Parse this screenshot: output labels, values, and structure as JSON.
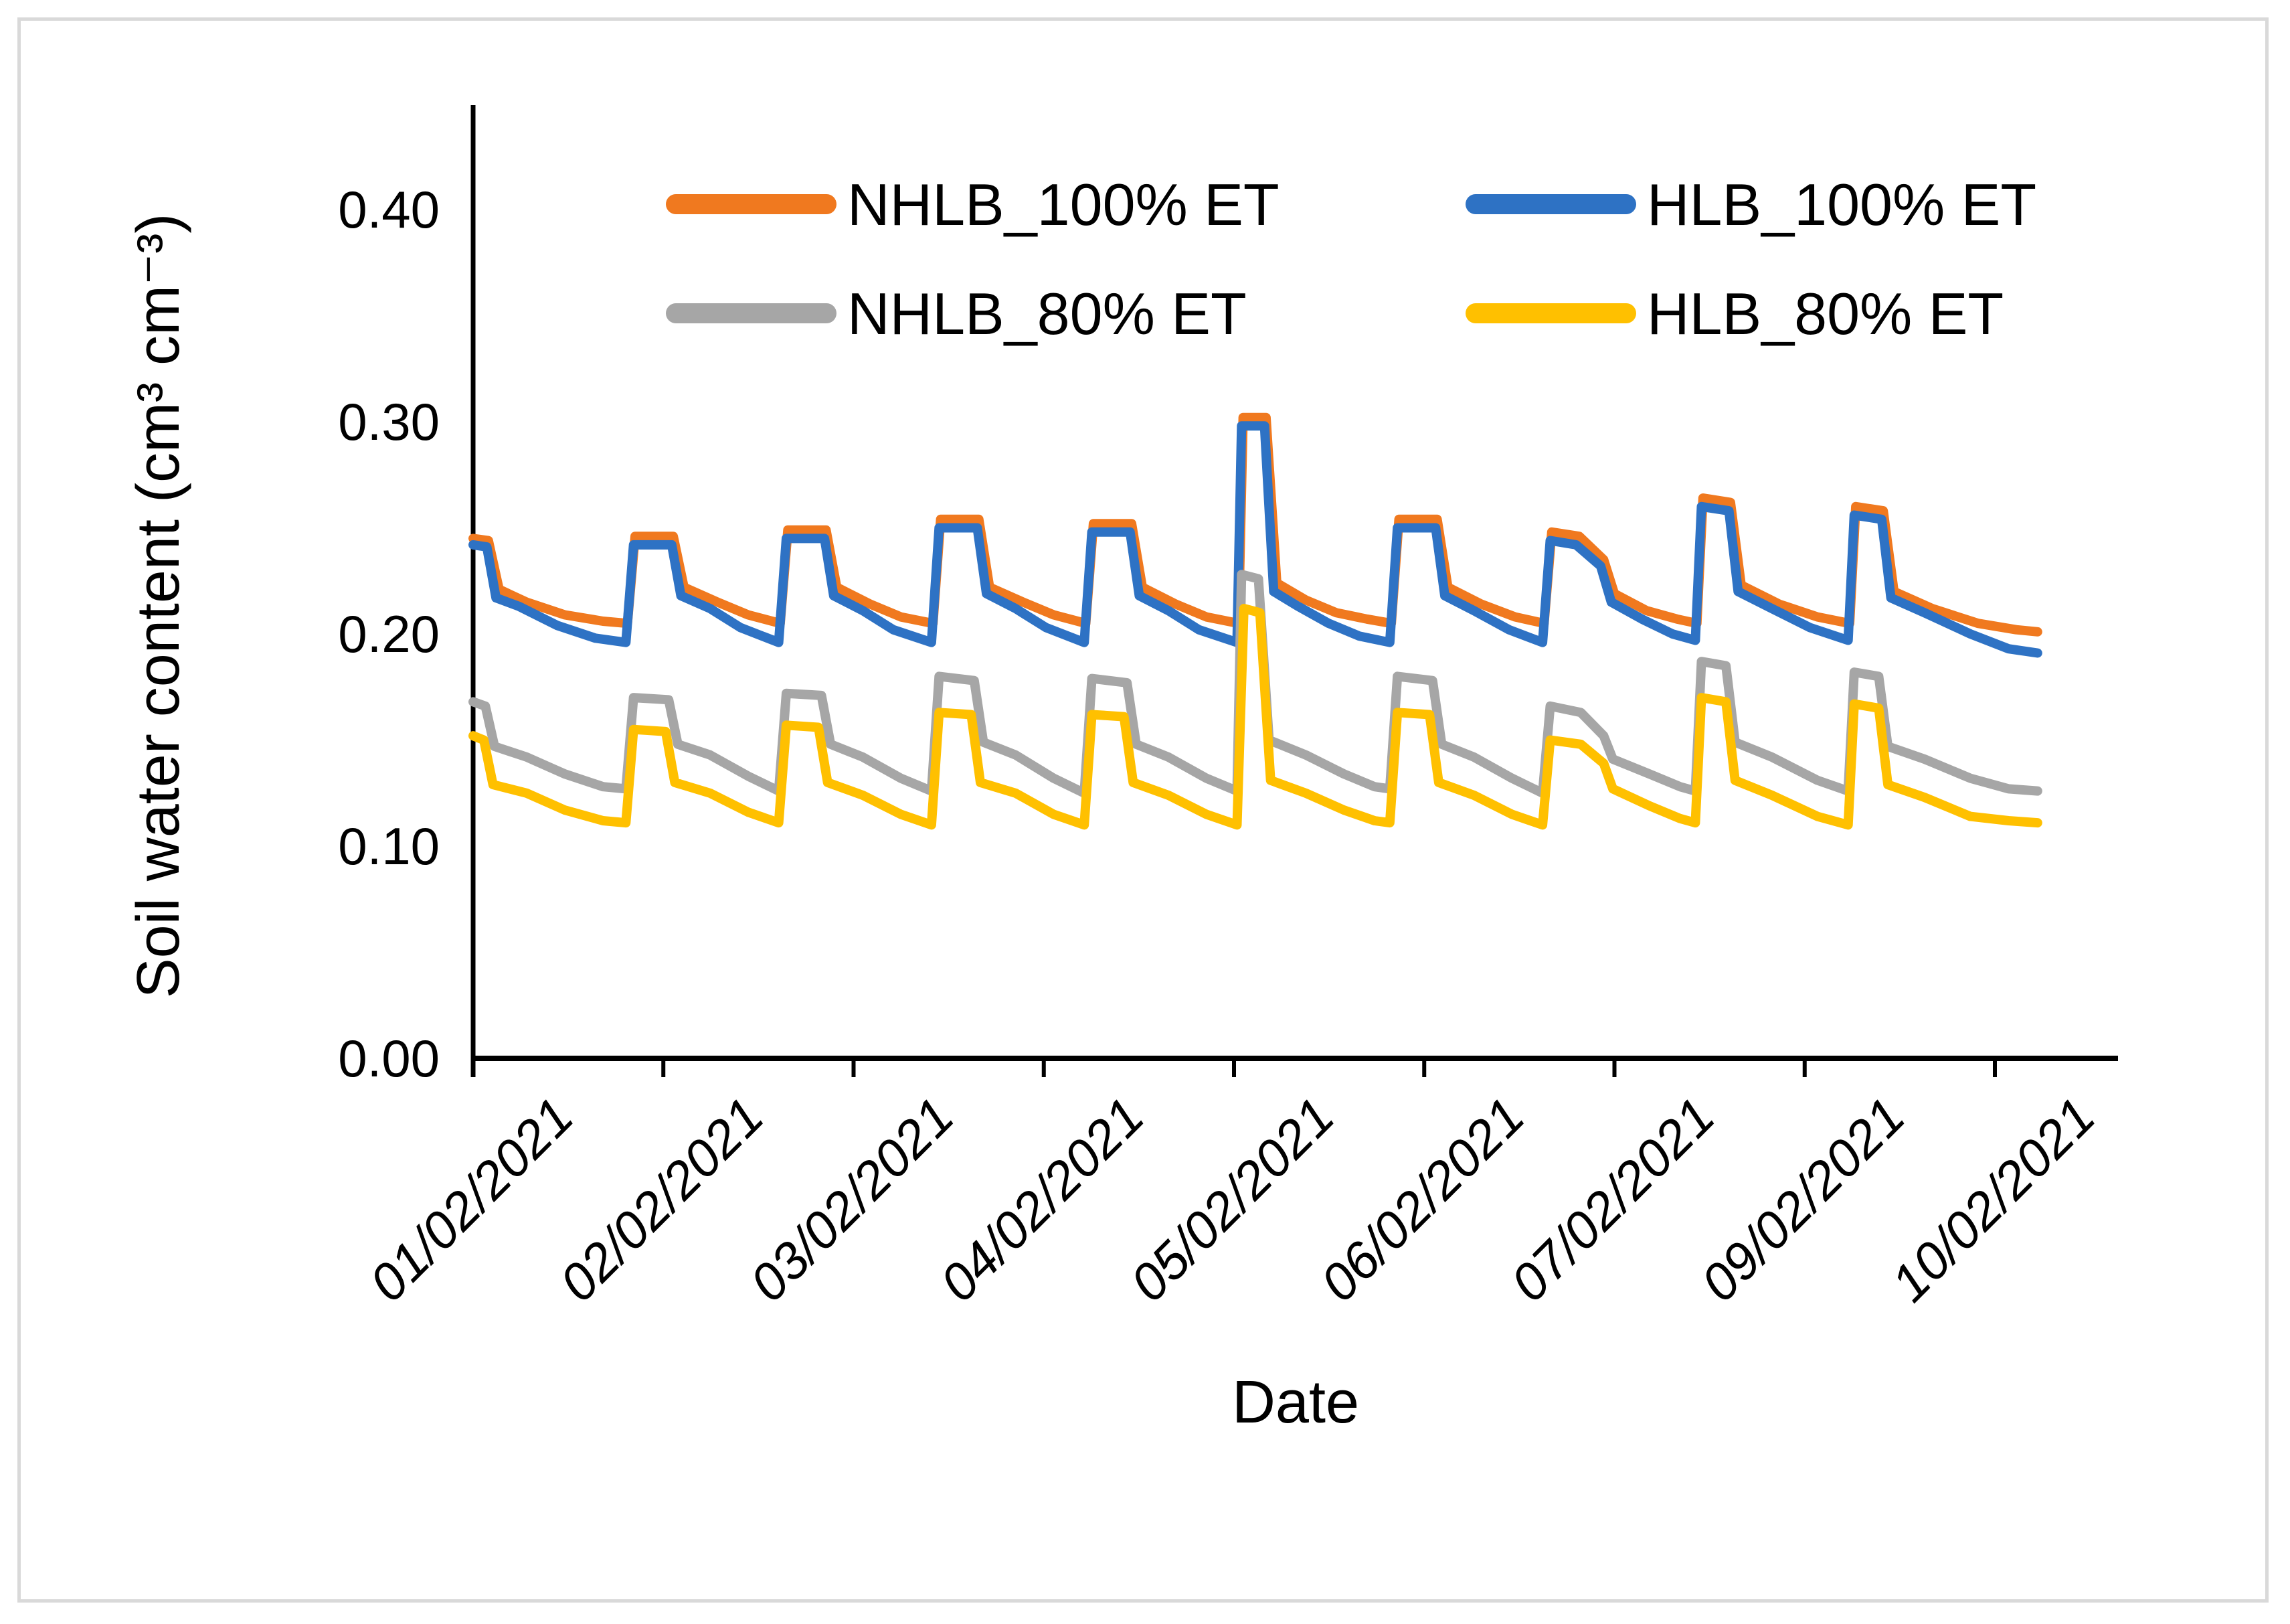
{
  "frame": {
    "border_color": "#d9d9d9",
    "background": "#ffffff"
  },
  "chart_data": {
    "type": "line",
    "title": "",
    "xlabel": "Date",
    "ylabel": "Soil water content (cm³ cm⁻³)",
    "ylim": [
      0.0,
      0.45
    ],
    "grid": false,
    "legend_position": "top-inside-two-columns",
    "axis_color": "#000000",
    "yticks": [
      {
        "value": 0.4,
        "label": "0.40"
      },
      {
        "value": 0.3,
        "label": "0.30"
      },
      {
        "value": 0.2,
        "label": "0.20"
      },
      {
        "value": 0.1,
        "label": "0.10"
      },
      {
        "value": 0.0,
        "label": "0.00"
      }
    ],
    "x_tick_labels": [
      "01/02/2021",
      "02/02/2021",
      "03/02/2021",
      "04/02/2021",
      "05/02/2021",
      "06/02/2021",
      "07/02/2021",
      "09/02/2021",
      "10/02/2021"
    ],
    "x_domain_days": [
      0,
      10.24
    ],
    "legend": [
      {
        "label": "NHLB_100% ET",
        "color": "#F0791F",
        "column": 0,
        "row": 0
      },
      {
        "label": "HLB_100% ET",
        "color": "#2E72C4",
        "column": 1,
        "row": 0
      },
      {
        "label": "NHLB_80% ET",
        "color": "#A6A6A6",
        "column": 0,
        "row": 1
      },
      {
        "label": "HLB_80% ET",
        "color": "#FFC000",
        "column": 1,
        "row": 1
      }
    ],
    "series": [
      {
        "name": "NHLB_100% ET",
        "color": "#F0791F",
        "points": [
          [
            0,
            0.245
          ],
          [
            0.1,
            0.244
          ],
          [
            0.17,
            0.221
          ],
          [
            0.35,
            0.215
          ],
          [
            0.6,
            0.209
          ],
          [
            0.85,
            0.206
          ],
          [
            1.01,
            0.205
          ],
          [
            1.06,
            0.246
          ],
          [
            1.31,
            0.246
          ],
          [
            1.38,
            0.222
          ],
          [
            1.6,
            0.215
          ],
          [
            1.8,
            0.209
          ],
          [
            2.01,
            0.205
          ],
          [
            2.06,
            0.249
          ],
          [
            2.31,
            0.249
          ],
          [
            2.38,
            0.222
          ],
          [
            2.6,
            0.214
          ],
          [
            2.8,
            0.208
          ],
          [
            3.01,
            0.205
          ],
          [
            3.06,
            0.254
          ],
          [
            3.31,
            0.254
          ],
          [
            3.38,
            0.222
          ],
          [
            3.6,
            0.215
          ],
          [
            3.8,
            0.209
          ],
          [
            4.01,
            0.205
          ],
          [
            4.06,
            0.252
          ],
          [
            4.31,
            0.252
          ],
          [
            4.38,
            0.222
          ],
          [
            4.6,
            0.214
          ],
          [
            4.8,
            0.208
          ],
          [
            5.01,
            0.205
          ],
          [
            5.04,
            0.302
          ],
          [
            5.19,
            0.302
          ],
          [
            5.26,
            0.224
          ],
          [
            5.45,
            0.216
          ],
          [
            5.65,
            0.21
          ],
          [
            5.85,
            0.207
          ],
          [
            6.01,
            0.205
          ],
          [
            6.06,
            0.254
          ],
          [
            6.31,
            0.254
          ],
          [
            6.38,
            0.222
          ],
          [
            6.6,
            0.214
          ],
          [
            6.82,
            0.208
          ],
          [
            7.01,
            0.205
          ],
          [
            7.06,
            0.248
          ],
          [
            7.24,
            0.246
          ],
          [
            7.4,
            0.235
          ],
          [
            7.47,
            0.219
          ],
          [
            7.68,
            0.211
          ],
          [
            7.88,
            0.207
          ],
          [
            8.01,
            0.205
          ],
          [
            8.05,
            0.264
          ],
          [
            8.23,
            0.262
          ],
          [
            8.3,
            0.223
          ],
          [
            8.55,
            0.214
          ],
          [
            8.8,
            0.208
          ],
          [
            9.01,
            0.205
          ],
          [
            9.05,
            0.26
          ],
          [
            9.23,
            0.258
          ],
          [
            9.3,
            0.22
          ],
          [
            9.55,
            0.212
          ],
          [
            9.85,
            0.205
          ],
          [
            10.1,
            0.202
          ],
          [
            10.24,
            0.201
          ]
        ]
      },
      {
        "name": "HLB_100% ET",
        "color": "#2E72C4",
        "points": [
          [
            0,
            0.242
          ],
          [
            0.09,
            0.241
          ],
          [
            0.15,
            0.217
          ],
          [
            0.3,
            0.213
          ],
          [
            0.55,
            0.204
          ],
          [
            0.8,
            0.198
          ],
          [
            1.0,
            0.196
          ],
          [
            1.05,
            0.242
          ],
          [
            1.3,
            0.242
          ],
          [
            1.36,
            0.218
          ],
          [
            1.55,
            0.212
          ],
          [
            1.75,
            0.203
          ],
          [
            2.0,
            0.196
          ],
          [
            2.05,
            0.245
          ],
          [
            2.3,
            0.245
          ],
          [
            2.36,
            0.218
          ],
          [
            2.55,
            0.211
          ],
          [
            2.75,
            0.202
          ],
          [
            3.0,
            0.196
          ],
          [
            3.05,
            0.25
          ],
          [
            3.3,
            0.25
          ],
          [
            3.36,
            0.219
          ],
          [
            3.55,
            0.212
          ],
          [
            3.75,
            0.203
          ],
          [
            4.0,
            0.196
          ],
          [
            4.05,
            0.248
          ],
          [
            4.3,
            0.248
          ],
          [
            4.36,
            0.218
          ],
          [
            4.55,
            0.211
          ],
          [
            4.75,
            0.202
          ],
          [
            5.0,
            0.196
          ],
          [
            5.03,
            0.298
          ],
          [
            5.18,
            0.298
          ],
          [
            5.24,
            0.22
          ],
          [
            5.4,
            0.213
          ],
          [
            5.6,
            0.205
          ],
          [
            5.8,
            0.199
          ],
          [
            6.0,
            0.196
          ],
          [
            6.05,
            0.25
          ],
          [
            6.3,
            0.25
          ],
          [
            6.36,
            0.218
          ],
          [
            6.55,
            0.211
          ],
          [
            6.78,
            0.202
          ],
          [
            7.0,
            0.196
          ],
          [
            7.05,
            0.244
          ],
          [
            7.22,
            0.242
          ],
          [
            7.38,
            0.232
          ],
          [
            7.45,
            0.215
          ],
          [
            7.65,
            0.207
          ],
          [
            7.85,
            0.2
          ],
          [
            8.0,
            0.197
          ],
          [
            8.04,
            0.26
          ],
          [
            8.22,
            0.258
          ],
          [
            8.28,
            0.22
          ],
          [
            8.5,
            0.212
          ],
          [
            8.75,
            0.203
          ],
          [
            9.0,
            0.197
          ],
          [
            9.04,
            0.256
          ],
          [
            9.22,
            0.254
          ],
          [
            9.28,
            0.217
          ],
          [
            9.5,
            0.21
          ],
          [
            9.8,
            0.2
          ],
          [
            10.05,
            0.193
          ],
          [
            10.24,
            0.191
          ]
        ]
      },
      {
        "name": "NHLB_80% ET",
        "color": "#A6A6A6",
        "points": [
          [
            0,
            0.168
          ],
          [
            0.08,
            0.166
          ],
          [
            0.14,
            0.147
          ],
          [
            0.35,
            0.142
          ],
          [
            0.6,
            0.134
          ],
          [
            0.85,
            0.128
          ],
          [
            1.0,
            0.127
          ],
          [
            1.05,
            0.17
          ],
          [
            1.28,
            0.169
          ],
          [
            1.34,
            0.148
          ],
          [
            1.55,
            0.143
          ],
          [
            1.8,
            0.133
          ],
          [
            2.0,
            0.126
          ],
          [
            2.05,
            0.172
          ],
          [
            2.28,
            0.171
          ],
          [
            2.34,
            0.148
          ],
          [
            2.55,
            0.142
          ],
          [
            2.8,
            0.132
          ],
          [
            3.0,
            0.126
          ],
          [
            3.05,
            0.18
          ],
          [
            3.28,
            0.178
          ],
          [
            3.34,
            0.149
          ],
          [
            3.55,
            0.143
          ],
          [
            3.8,
            0.132
          ],
          [
            4.0,
            0.125
          ],
          [
            4.05,
            0.179
          ],
          [
            4.28,
            0.177
          ],
          [
            4.34,
            0.148
          ],
          [
            4.55,
            0.142
          ],
          [
            4.8,
            0.132
          ],
          [
            5.0,
            0.126
          ],
          [
            5.03,
            0.228
          ],
          [
            5.14,
            0.226
          ],
          [
            5.21,
            0.15
          ],
          [
            5.45,
            0.143
          ],
          [
            5.7,
            0.134
          ],
          [
            5.9,
            0.128
          ],
          [
            6.0,
            0.127
          ],
          [
            6.05,
            0.18
          ],
          [
            6.28,
            0.178
          ],
          [
            6.34,
            0.148
          ],
          [
            6.55,
            0.142
          ],
          [
            6.8,
            0.132
          ],
          [
            7.0,
            0.125
          ],
          [
            7.05,
            0.166
          ],
          [
            7.25,
            0.163
          ],
          [
            7.4,
            0.152
          ],
          [
            7.46,
            0.141
          ],
          [
            7.7,
            0.134
          ],
          [
            7.9,
            0.128
          ],
          [
            8.0,
            0.126
          ],
          [
            8.04,
            0.187
          ],
          [
            8.2,
            0.185
          ],
          [
            8.26,
            0.149
          ],
          [
            8.5,
            0.142
          ],
          [
            8.8,
            0.131
          ],
          [
            9.0,
            0.126
          ],
          [
            9.04,
            0.182
          ],
          [
            9.2,
            0.18
          ],
          [
            9.26,
            0.147
          ],
          [
            9.5,
            0.141
          ],
          [
            9.8,
            0.132
          ],
          [
            10.05,
            0.127
          ],
          [
            10.24,
            0.126
          ]
        ]
      },
      {
        "name": "HLB_80% ET",
        "color": "#FFC000",
        "points": [
          [
            0,
            0.152
          ],
          [
            0.07,
            0.15
          ],
          [
            0.13,
            0.129
          ],
          [
            0.35,
            0.125
          ],
          [
            0.6,
            0.117
          ],
          [
            0.85,
            0.112
          ],
          [
            1.0,
            0.111
          ],
          [
            1.05,
            0.155
          ],
          [
            1.26,
            0.154
          ],
          [
            1.32,
            0.13
          ],
          [
            1.55,
            0.125
          ],
          [
            1.8,
            0.116
          ],
          [
            2.0,
            0.111
          ],
          [
            2.05,
            0.157
          ],
          [
            2.26,
            0.156
          ],
          [
            2.32,
            0.13
          ],
          [
            2.55,
            0.124
          ],
          [
            2.8,
            0.115
          ],
          [
            3.0,
            0.11
          ],
          [
            3.05,
            0.163
          ],
          [
            3.26,
            0.162
          ],
          [
            3.32,
            0.13
          ],
          [
            3.55,
            0.125
          ],
          [
            3.8,
            0.115
          ],
          [
            4.0,
            0.11
          ],
          [
            4.05,
            0.162
          ],
          [
            4.26,
            0.161
          ],
          [
            4.32,
            0.13
          ],
          [
            4.55,
            0.124
          ],
          [
            4.8,
            0.115
          ],
          [
            5.0,
            0.11
          ],
          [
            5.045,
            0.212
          ],
          [
            5.15,
            0.21
          ],
          [
            5.22,
            0.131
          ],
          [
            5.45,
            0.125
          ],
          [
            5.7,
            0.117
          ],
          [
            5.9,
            0.112
          ],
          [
            6.0,
            0.111
          ],
          [
            6.05,
            0.163
          ],
          [
            6.26,
            0.162
          ],
          [
            6.32,
            0.13
          ],
          [
            6.55,
            0.124
          ],
          [
            6.8,
            0.115
          ],
          [
            7.0,
            0.11
          ],
          [
            7.05,
            0.15
          ],
          [
            7.25,
            0.148
          ],
          [
            7.4,
            0.139
          ],
          [
            7.46,
            0.127
          ],
          [
            7.7,
            0.119
          ],
          [
            7.9,
            0.113
          ],
          [
            8.0,
            0.111
          ],
          [
            8.04,
            0.17
          ],
          [
            8.2,
            0.168
          ],
          [
            8.26,
            0.131
          ],
          [
            8.5,
            0.124
          ],
          [
            8.8,
            0.114
          ],
          [
            9.0,
            0.11
          ],
          [
            9.04,
            0.167
          ],
          [
            9.2,
            0.165
          ],
          [
            9.26,
            0.129
          ],
          [
            9.5,
            0.123
          ],
          [
            9.8,
            0.114
          ],
          [
            10.05,
            0.112
          ],
          [
            10.24,
            0.111
          ]
        ]
      }
    ]
  }
}
